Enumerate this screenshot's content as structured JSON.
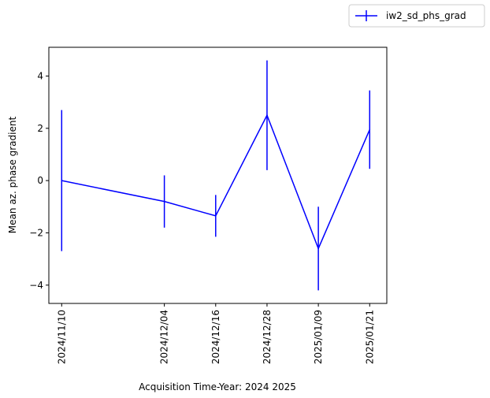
{
  "chart_data": {
    "type": "line",
    "title": "",
    "xlabel": "Acquisition Time-Year: 2024 2025",
    "ylabel": "Mean az. phase gradient",
    "x": [
      "2024/11/10",
      "2024/12/04",
      "2024/12/16",
      "2024/12/28",
      "2025/01/09",
      "2025/01/21"
    ],
    "x_tick_labels": [
      "2024/11/10",
      "2024/12/04",
      "2024/12/16",
      "2024/12/28",
      "2025/01/09",
      "2025/01/21"
    ],
    "y_ticks": [
      -4,
      -2,
      0,
      2,
      4
    ],
    "y_tick_labels": [
      "−4",
      "−2",
      "0",
      "2",
      "4"
    ],
    "ylim": [
      -4.7,
      5.1
    ],
    "xlim": [
      "2024/11/07",
      "2025/01/25"
    ],
    "grid": false,
    "legend_position": "top-right",
    "series": [
      {
        "name": "iw2_sd_phs_grad",
        "color": "#0000ff",
        "values": [
          0.0,
          -0.8,
          -1.35,
          2.5,
          -2.6,
          1.95
        ],
        "error": [
          2.7,
          1.0,
          0.8,
          2.1,
          1.6,
          1.5
        ]
      }
    ]
  }
}
